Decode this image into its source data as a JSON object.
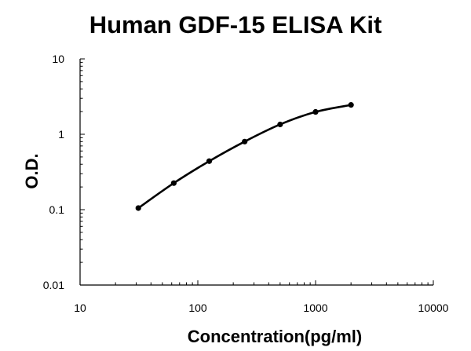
{
  "chart_data": {
    "type": "line",
    "title": "Human GDF-15 ELISA Kit",
    "xlabel": "Concentration(pg/ml)",
    "ylabel": "O.D.",
    "x_scale": "log",
    "y_scale": "log",
    "xlim": [
      10,
      10000
    ],
    "ylim": [
      0.01,
      10
    ],
    "x_ticks": [
      "10",
      "100",
      "1000",
      "10000"
    ],
    "y_ticks": [
      "0.01",
      "0.1",
      "1",
      "10"
    ],
    "grid": false,
    "legend": "none",
    "series": [
      {
        "x": [
          31.25,
          62.5,
          125,
          250,
          500,
          1000,
          2000
        ],
        "y": [
          0.105,
          0.225,
          0.44,
          0.8,
          1.35,
          1.98,
          2.45
        ]
      }
    ],
    "colors": {
      "line": "#000000",
      "marker": "#000000",
      "axis": "#000000"
    }
  }
}
